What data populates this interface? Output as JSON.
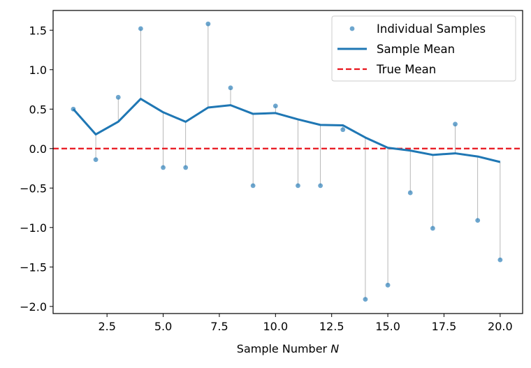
{
  "chart_data": {
    "type": "line",
    "xlabel": "Sample Number",
    "xlabel_var": "N",
    "xlim": [
      0.1,
      21.0
    ],
    "ylim": [
      -2.09,
      1.75
    ],
    "xticks": [
      2.5,
      5.0,
      7.5,
      10.0,
      12.5,
      15.0,
      17.5,
      20.0
    ],
    "xtick_labels": [
      "2.5",
      "5.0",
      "7.5",
      "10.0",
      "12.5",
      "15.0",
      "17.5",
      "20.0"
    ],
    "yticks": [
      1.5,
      1.0,
      0.5,
      0.0,
      -0.5,
      -1.0,
      -1.5,
      -2.0
    ],
    "ytick_labels": [
      "1.5",
      "1.0",
      "0.5",
      "0.0",
      "−0.5",
      "−1.0",
      "−1.5",
      "−2.0"
    ],
    "grid": false,
    "legend_position": "top-right",
    "series": [
      {
        "name": "Individual Samples",
        "kind": "scatter",
        "color": "#1f77b4",
        "x": [
          1,
          2,
          3,
          4,
          5,
          6,
          7,
          8,
          9,
          10,
          11,
          12,
          13,
          14,
          15,
          16,
          17,
          18,
          19,
          20
        ],
        "y": [
          0.5,
          -0.14,
          0.65,
          1.52,
          -0.24,
          -0.24,
          1.58,
          0.77,
          -0.47,
          0.54,
          -0.47,
          -0.47,
          0.24,
          -1.91,
          -1.73,
          -0.56,
          -1.01,
          0.31,
          -0.91,
          -1.41
        ]
      },
      {
        "name": "Sample Mean",
        "kind": "line",
        "color": "#1f77b4",
        "x": [
          1,
          2,
          3,
          4,
          5,
          6,
          7,
          8,
          9,
          10,
          11,
          12,
          13,
          14,
          15,
          16,
          17,
          18,
          19,
          20
        ],
        "y": [
          0.5,
          0.18,
          0.34,
          0.63,
          0.46,
          0.34,
          0.52,
          0.55,
          0.44,
          0.45,
          0.37,
          0.3,
          0.295,
          0.14,
          0.01,
          -0.025,
          -0.08,
          -0.06,
          -0.1,
          -0.17
        ]
      },
      {
        "name": "True Mean",
        "kind": "hline",
        "color": "#e8141c",
        "y": 0.0
      }
    ],
    "residual_color": "#a6a6a6"
  }
}
